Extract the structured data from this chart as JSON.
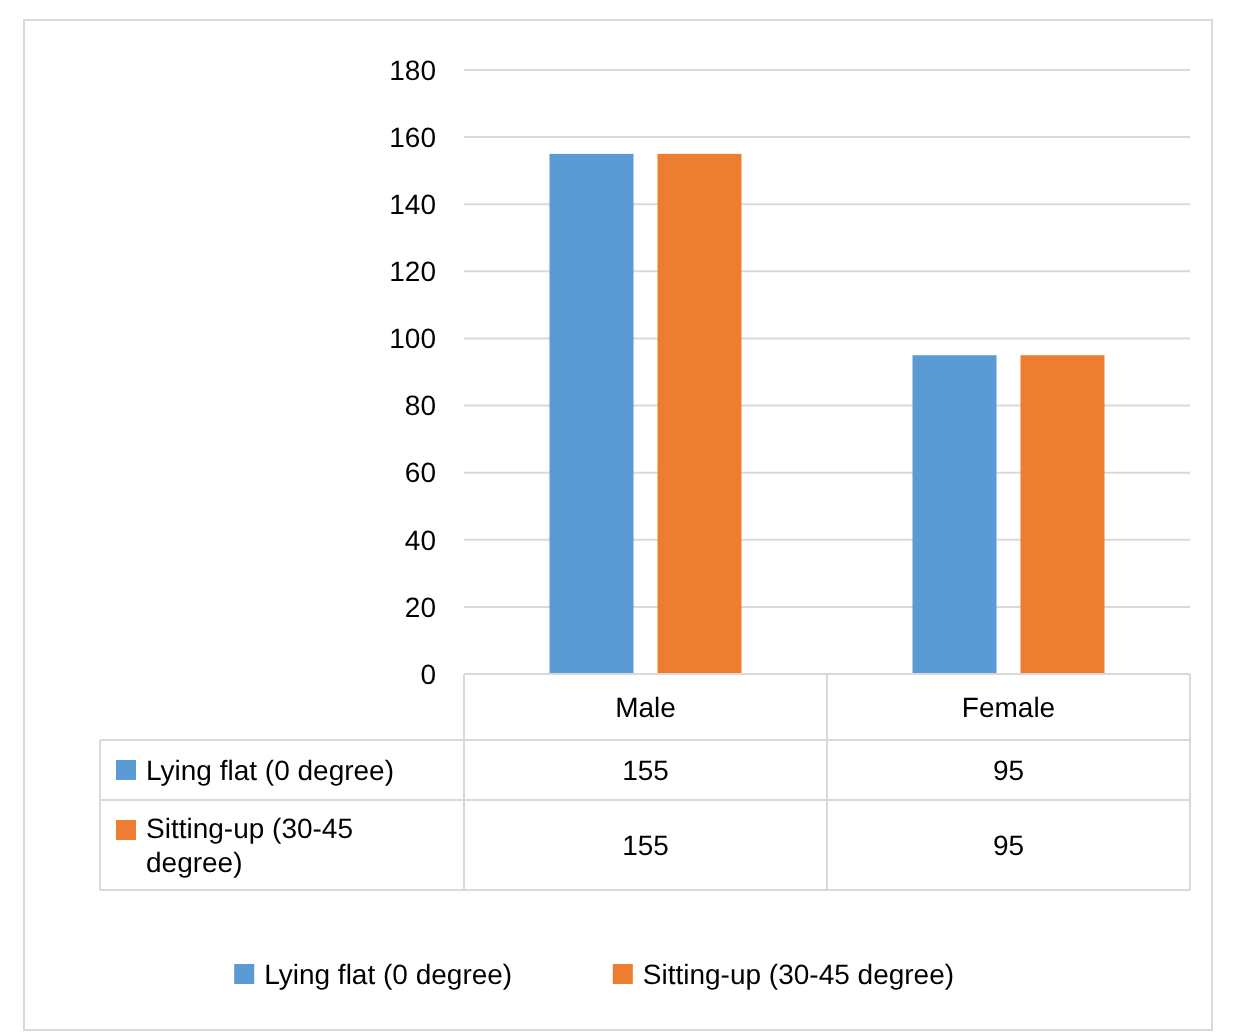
{
  "chart_data": {
    "type": "bar",
    "categories": [
      "Male",
      "Female"
    ],
    "series": [
      {
        "name": "Lying flat (0 degree)",
        "color": "#5b9bd5",
        "values": [
          155,
          95
        ]
      },
      {
        "name": "Sitting-up (30-45 degree)",
        "color": "#ed7d31",
        "values": [
          155,
          95
        ]
      }
    ],
    "ylim": [
      0,
      180
    ],
    "yticks": [
      0,
      20,
      40,
      60,
      80,
      100,
      120,
      140,
      160,
      180
    ],
    "grid": "y",
    "legend": "bottom",
    "data_labels": true
  }
}
